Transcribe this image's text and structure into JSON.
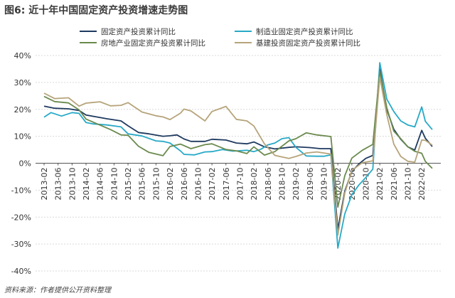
{
  "figure": {
    "title": "图6: 近十年中国固定资产投资增速走势图",
    "source": "资料来源：作者提供公开资料整理"
  },
  "colors": {
    "fai": "#1f3a5f",
    "realestate": "#6b8a4e",
    "manufacturing": "#27a9c7",
    "infrastructure": "#b6a47a"
  },
  "chart_data": {
    "type": "line",
    "title": "图6: 近十年中国固定资产投资增速走势图",
    "xlabel": "",
    "ylabel": "",
    "ylim": [
      -40,
      40
    ],
    "yticks": [
      "40%",
      "30%",
      "20%",
      "10%",
      "0%",
      "-10%",
      "-20%",
      "-30%",
      "-40%"
    ],
    "ytick_values": [
      40,
      30,
      20,
      10,
      0,
      -10,
      -20,
      -30,
      -40
    ],
    "xticks": [
      "2013-02",
      "2013-06",
      "2013-10",
      "2014-02",
      "2014-06",
      "2014-10",
      "2015-02",
      "2015-06",
      "2015-10",
      "2016-02",
      "2016-06",
      "2016-10",
      "2017-02",
      "2017-06",
      "2017-10",
      "2018-02",
      "2018-06",
      "2018-10",
      "2019-02",
      "2019-06",
      "2019-10",
      "2020-02",
      "2020-06",
      "2020-10",
      "2021-02",
      "2021-06",
      "2021-10",
      "2022-02"
    ],
    "x_start": "2013-02",
    "x_end": "2022-05",
    "grid": "horizontal",
    "legend_position": "top",
    "series": [
      {
        "name": "固定资产投资累计同比",
        "color_key": "fai",
        "points": [
          [
            "2013-02",
            21.2
          ],
          [
            "2013-05",
            20.4
          ],
          [
            "2013-09",
            20.2
          ],
          [
            "2013-12",
            19.6
          ],
          [
            "2014-02",
            17.9
          ],
          [
            "2014-05",
            17.2
          ],
          [
            "2014-08",
            16.5
          ],
          [
            "2014-12",
            15.7
          ],
          [
            "2015-02",
            13.9
          ],
          [
            "2015-05",
            11.4
          ],
          [
            "2015-08",
            10.9
          ],
          [
            "2015-12",
            10.0
          ],
          [
            "2016-02",
            10.2
          ],
          [
            "2016-04",
            10.5
          ],
          [
            "2016-06",
            9.0
          ],
          [
            "2016-08",
            8.1
          ],
          [
            "2016-12",
            8.1
          ],
          [
            "2017-02",
            8.9
          ],
          [
            "2017-06",
            8.6
          ],
          [
            "2017-09",
            7.5
          ],
          [
            "2017-12",
            7.2
          ],
          [
            "2018-02",
            7.9
          ],
          [
            "2018-05",
            6.1
          ],
          [
            "2018-08",
            5.3
          ],
          [
            "2018-12",
            5.9
          ],
          [
            "2019-02",
            6.1
          ],
          [
            "2019-06",
            5.8
          ],
          [
            "2019-09",
            5.4
          ],
          [
            "2019-12",
            5.4
          ],
          [
            "2020-02",
            -24.5
          ],
          [
            "2020-04",
            -10.3
          ],
          [
            "2020-06",
            -3.1
          ],
          [
            "2020-08",
            -0.3
          ],
          [
            "2020-10",
            1.8
          ],
          [
            "2020-12",
            2.9
          ],
          [
            "2021-02",
            35.0
          ],
          [
            "2021-04",
            19.9
          ],
          [
            "2021-06",
            12.6
          ],
          [
            "2021-08",
            8.9
          ],
          [
            "2021-10",
            6.1
          ],
          [
            "2021-12",
            4.9
          ],
          [
            "2022-02",
            12.2
          ],
          [
            "2022-03",
            9.3
          ],
          [
            "2022-05",
            6.2
          ]
        ]
      },
      {
        "name": "制造业固定资产投资累计同比",
        "color_key": "manufacturing",
        "points": [
          [
            "2013-02",
            17.1
          ],
          [
            "2013-04",
            18.8
          ],
          [
            "2013-07",
            17.5
          ],
          [
            "2013-10",
            18.8
          ],
          [
            "2013-12",
            18.5
          ],
          [
            "2014-02",
            15.1
          ],
          [
            "2014-04",
            14.6
          ],
          [
            "2014-08",
            14.2
          ],
          [
            "2014-12",
            13.5
          ],
          [
            "2015-02",
            10.9
          ],
          [
            "2015-06",
            10.1
          ],
          [
            "2015-10",
            8.3
          ],
          [
            "2015-12",
            8.1
          ],
          [
            "2016-02",
            7.5
          ],
          [
            "2016-05",
            4.6
          ],
          [
            "2016-06",
            3.3
          ],
          [
            "2016-09",
            3.1
          ],
          [
            "2016-12",
            4.2
          ],
          [
            "2017-02",
            4.3
          ],
          [
            "2017-05",
            5.1
          ],
          [
            "2017-08",
            4.5
          ],
          [
            "2017-12",
            4.8
          ],
          [
            "2018-02",
            4.3
          ],
          [
            "2018-04",
            5.2
          ],
          [
            "2018-06",
            6.8
          ],
          [
            "2018-08",
            7.5
          ],
          [
            "2018-10",
            9.1
          ],
          [
            "2018-12",
            9.5
          ],
          [
            "2019-02",
            5.9
          ],
          [
            "2019-05",
            2.7
          ],
          [
            "2019-08",
            2.6
          ],
          [
            "2019-10",
            2.6
          ],
          [
            "2019-12",
            3.1
          ],
          [
            "2020-02",
            -31.5
          ],
          [
            "2020-04",
            -18.8
          ],
          [
            "2020-06",
            -11.7
          ],
          [
            "2020-08",
            -8.1
          ],
          [
            "2020-10",
            -5.3
          ],
          [
            "2020-12",
            -2.2
          ],
          [
            "2021-02",
            37.3
          ],
          [
            "2021-04",
            23.8
          ],
          [
            "2021-06",
            19.2
          ],
          [
            "2021-08",
            15.7
          ],
          [
            "2021-10",
            14.2
          ],
          [
            "2021-12",
            13.5
          ],
          [
            "2022-02",
            20.9
          ],
          [
            "2022-03",
            15.6
          ],
          [
            "2022-05",
            12.5
          ]
        ]
      },
      {
        "name": "房地产业固定资产投资累计同比",
        "color_key": "realestate",
        "points": [
          [
            "2013-02",
            24.8
          ],
          [
            "2013-05",
            22.9
          ],
          [
            "2013-09",
            22.4
          ],
          [
            "2013-12",
            19.8
          ],
          [
            "2014-02",
            16.4
          ],
          [
            "2014-05",
            14.7
          ],
          [
            "2014-09",
            12.5
          ],
          [
            "2014-12",
            10.5
          ],
          [
            "2015-02",
            10.4
          ],
          [
            "2015-05",
            6.3
          ],
          [
            "2015-08",
            4.0
          ],
          [
            "2015-12",
            2.8
          ],
          [
            "2016-02",
            6.2
          ],
          [
            "2016-05",
            7.1
          ],
          [
            "2016-08",
            5.4
          ],
          [
            "2016-12",
            6.9
          ],
          [
            "2017-02",
            7.2
          ],
          [
            "2017-06",
            5.1
          ],
          [
            "2017-09",
            4.6
          ],
          [
            "2017-12",
            3.6
          ],
          [
            "2018-02",
            6.1
          ],
          [
            "2018-05",
            3.0
          ],
          [
            "2018-08",
            4.3
          ],
          [
            "2018-12",
            8.3
          ],
          [
            "2019-02",
            9.1
          ],
          [
            "2019-05",
            11.3
          ],
          [
            "2019-08",
            10.5
          ],
          [
            "2019-12",
            9.9
          ],
          [
            "2020-02",
            -16.3
          ],
          [
            "2020-04",
            -4.6
          ],
          [
            "2020-06",
            1.9
          ],
          [
            "2020-09",
            4.8
          ],
          [
            "2020-12",
            7.0
          ],
          [
            "2021-02",
            34.0
          ],
          [
            "2021-04",
            20.6
          ],
          [
            "2021-06",
            11.9
          ],
          [
            "2021-08",
            9.1
          ],
          [
            "2021-10",
            6.1
          ],
          [
            "2021-12",
            4.4
          ],
          [
            "2022-02",
            3.7
          ],
          [
            "2022-03",
            0.7
          ],
          [
            "2022-05",
            -1.9
          ]
        ]
      },
      {
        "name": "基建投资固定资产投资累计同比",
        "color_key": "infrastructure",
        "points": [
          [
            "2013-02",
            26.0
          ],
          [
            "2013-05",
            24.0
          ],
          [
            "2013-09",
            24.3
          ],
          [
            "2013-12",
            21.2
          ],
          [
            "2014-02",
            22.3
          ],
          [
            "2014-06",
            22.8
          ],
          [
            "2014-09",
            21.3
          ],
          [
            "2014-12",
            21.5
          ],
          [
            "2015-02",
            22.5
          ],
          [
            "2015-06",
            19.0
          ],
          [
            "2015-10",
            17.6
          ],
          [
            "2015-12",
            17.2
          ],
          [
            "2016-02",
            16.2
          ],
          [
            "2016-05",
            18.6
          ],
          [
            "2016-06",
            20.1
          ],
          [
            "2016-08",
            19.4
          ],
          [
            "2016-12",
            15.7
          ],
          [
            "2017-02",
            19.2
          ],
          [
            "2017-06",
            21.1
          ],
          [
            "2017-09",
            16.3
          ],
          [
            "2017-12",
            15.7
          ],
          [
            "2018-02",
            13.8
          ],
          [
            "2018-05",
            7.2
          ],
          [
            "2018-08",
            2.9
          ],
          [
            "2018-12",
            1.8
          ],
          [
            "2019-02",
            2.5
          ],
          [
            "2019-05",
            3.8
          ],
          [
            "2019-08",
            4.2
          ],
          [
            "2019-12",
            3.4
          ],
          [
            "2020-02",
            -26.7
          ],
          [
            "2020-04",
            -11.0
          ],
          [
            "2020-06",
            -2.7
          ],
          [
            "2020-09",
            0.2
          ],
          [
            "2020-12",
            0.9
          ],
          [
            "2021-02",
            32.0
          ],
          [
            "2021-04",
            18.0
          ],
          [
            "2021-06",
            7.1
          ],
          [
            "2021-08",
            2.5
          ],
          [
            "2021-10",
            0.7
          ],
          [
            "2021-12",
            0.4
          ],
          [
            "2022-02",
            8.6
          ],
          [
            "2022-03",
            8.5
          ],
          [
            "2022-05",
            6.7
          ]
        ]
      }
    ]
  }
}
